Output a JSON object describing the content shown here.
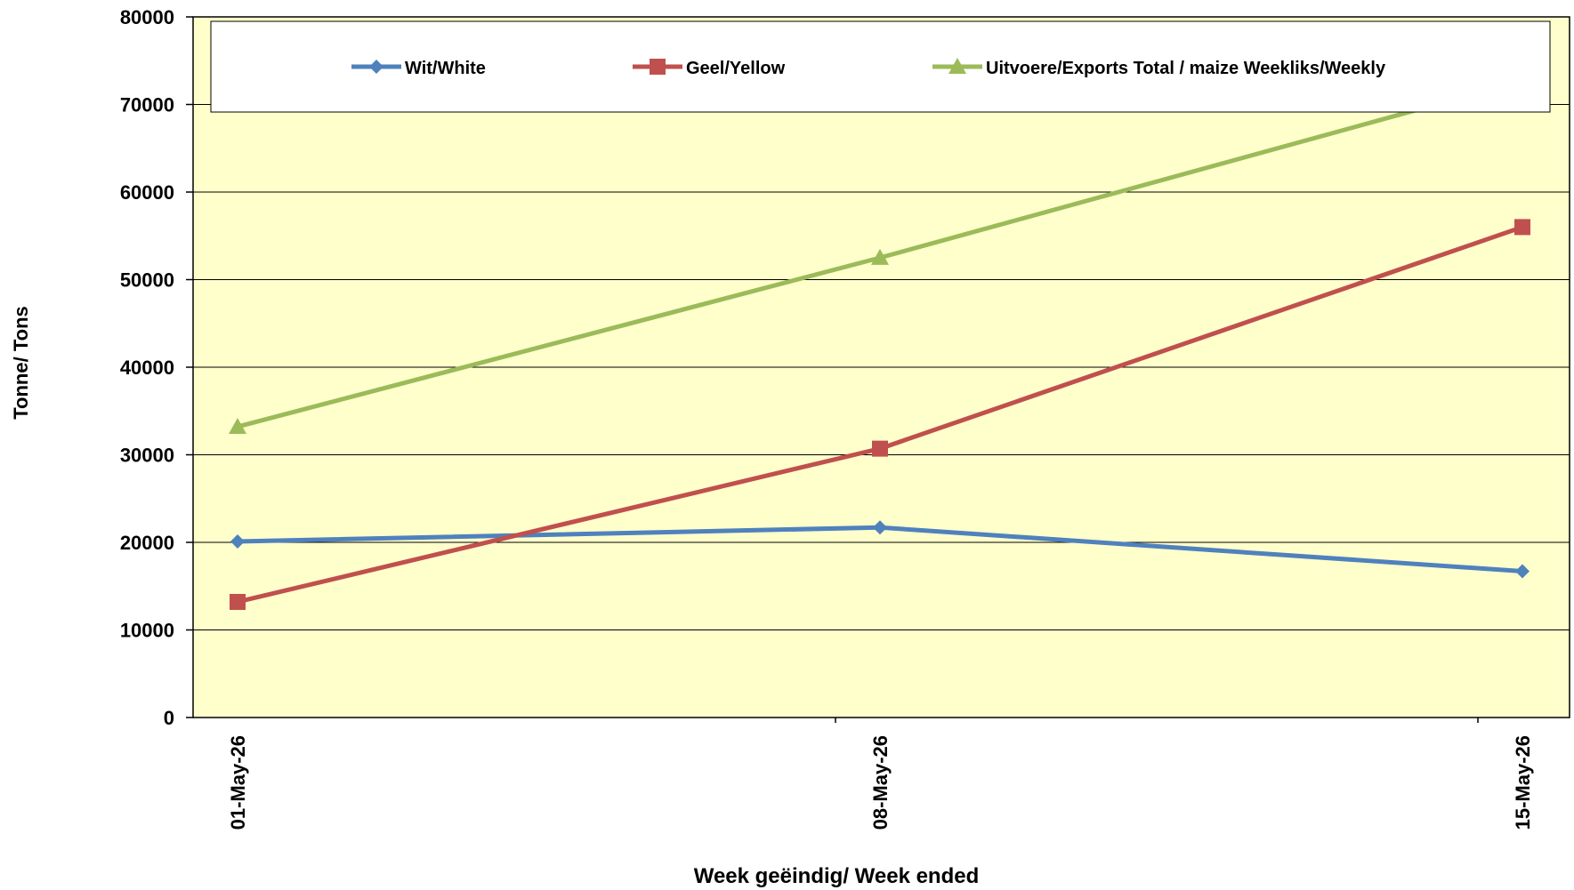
{
  "chart_data": {
    "type": "line",
    "title": "",
    "xlabel": "Week geëindig/ Week ended",
    "ylabel": "Tonne/ Tons",
    "categories": [
      "01-May-26",
      "08-May-26",
      "15-May-26"
    ],
    "ylim": [
      0,
      80000
    ],
    "yticks": [
      "0",
      "10000",
      "20000",
      "30000",
      "40000",
      "50000",
      "60000",
      "70000",
      "80000"
    ],
    "plot_background": "#FFFFCC",
    "grid": true,
    "legend_position": "top",
    "series": [
      {
        "name": "Wit/White",
        "values": [
          20100,
          21700,
          16700
        ],
        "color": "#4F81BD",
        "marker": "diamond"
      },
      {
        "name": "Geel/Yellow",
        "values": [
          13200,
          30700,
          56000
        ],
        "color": "#C0504D",
        "marker": "square"
      },
      {
        "name": "Uitvoere/Exports Total / maize Weekliks/Weekly",
        "values": [
          33200,
          52500,
          72700
        ],
        "color": "#9BBB59",
        "marker": "triangle"
      }
    ]
  }
}
